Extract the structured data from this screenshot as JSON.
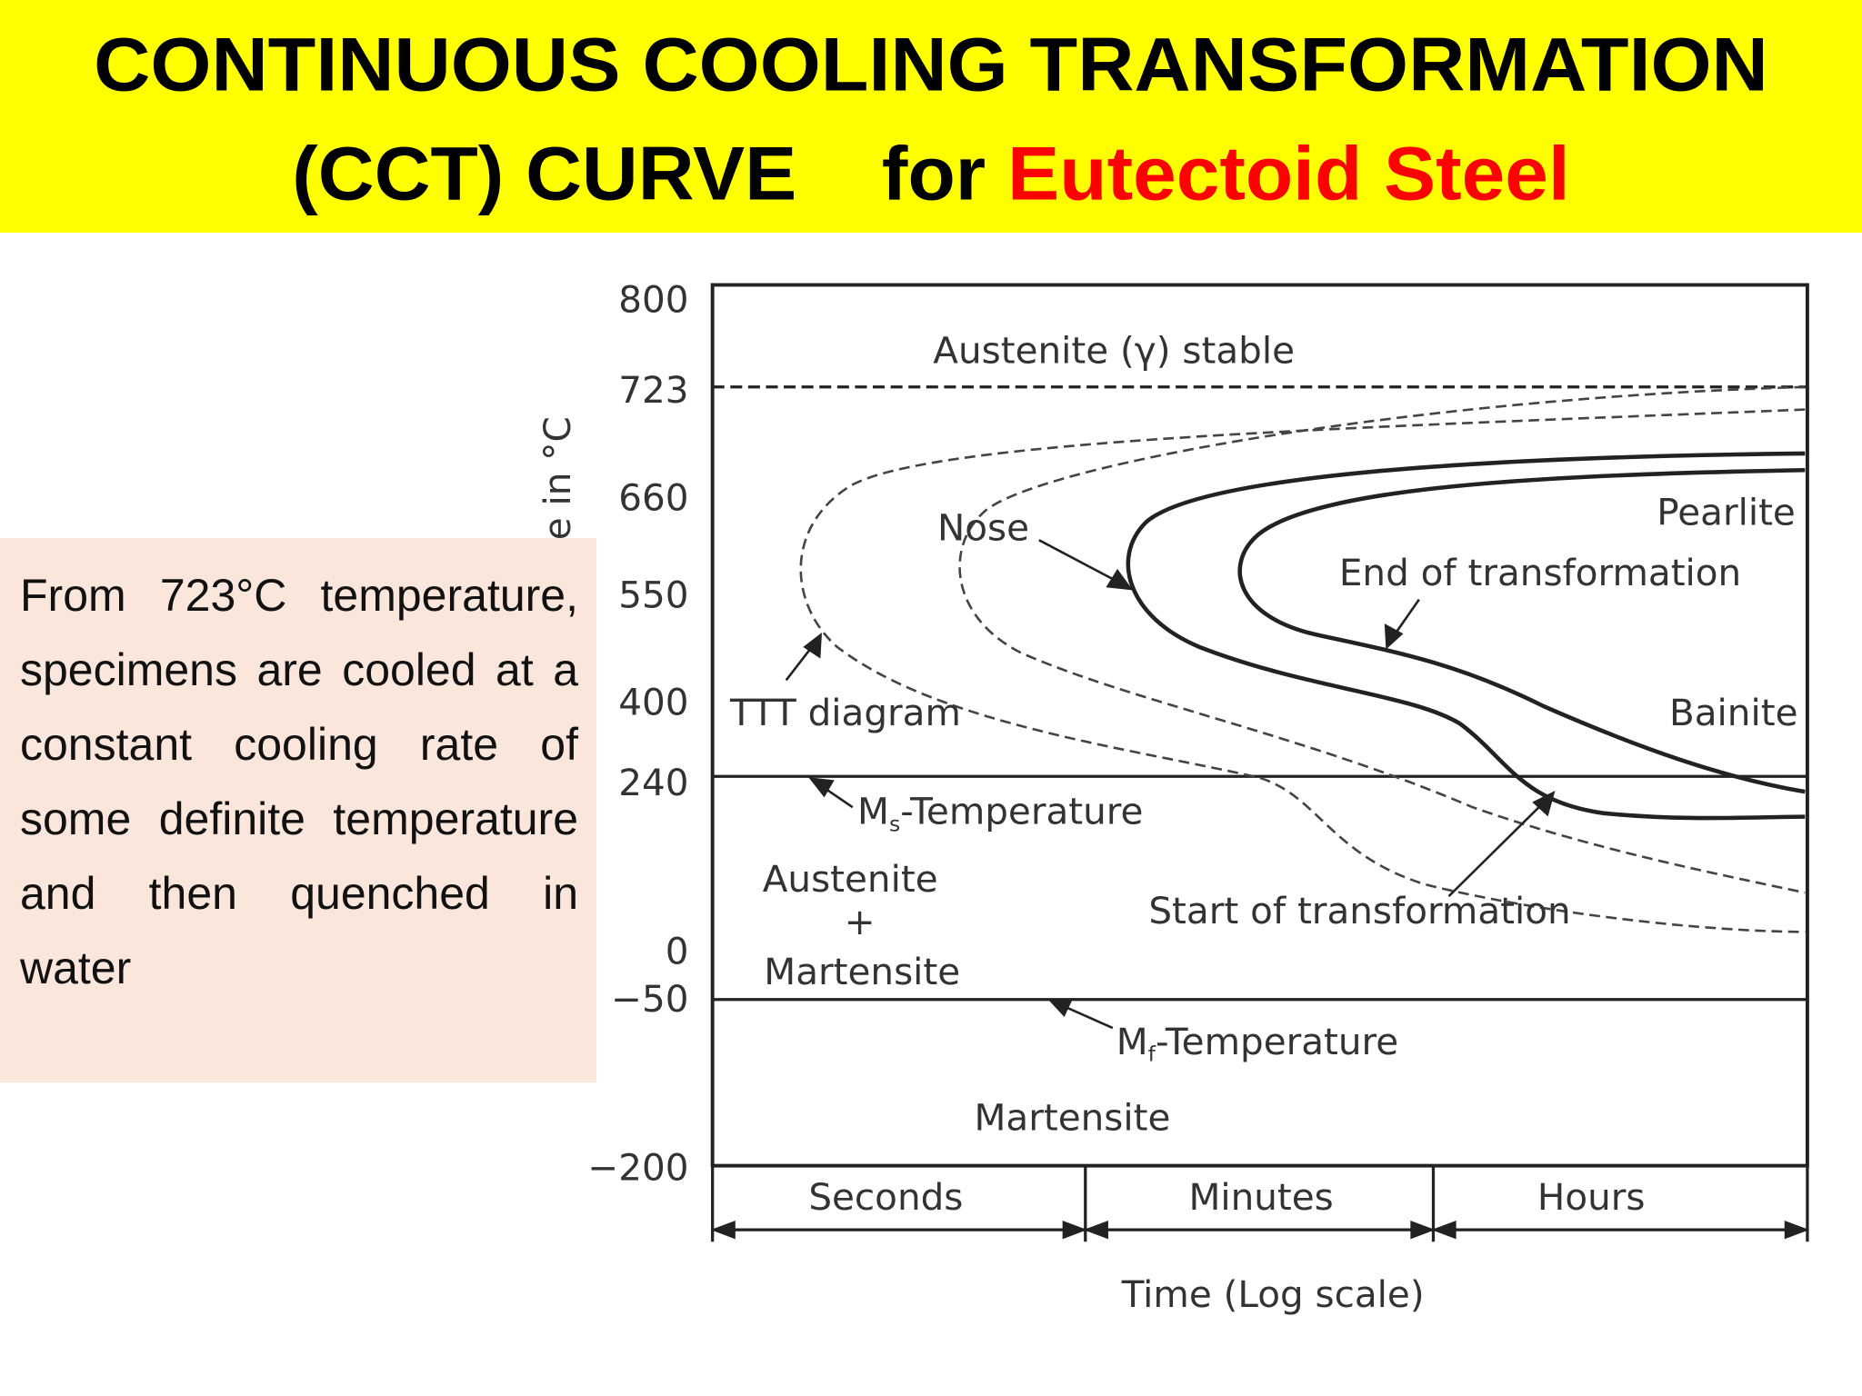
{
  "header": {
    "title_line1": "CONTINUOUS COOLING TRANSFORMATION",
    "title_line2_part1": "(CCT) CURVE",
    "title_line2_part2": "for",
    "title_line2_highlight": "Eutectoid Steel"
  },
  "description": "From 723°C temperature, specimens are cooled at a constant cooling rate of some definite temperature and then quenched in water",
  "diagram": {
    "y_axis_label": "e in °C",
    "y_tick_labels": [
      "800",
      "723",
      "660",
      "550",
      "400",
      "240",
      "0",
      "−50",
      "−200"
    ],
    "labels": {
      "austenite_stable": "Austenite (γ) stable",
      "nose": "Nose",
      "pearlite": "Pearlite",
      "end_of_transformation": "End of transformation",
      "ttt_diagram": "TTT diagram",
      "bainite": "Bainite",
      "start_of_transformation": "Start of transformation",
      "austenite": "Austenite",
      "plus": "+",
      "martensite_mixed": "Martensite",
      "martensite": "Martensite"
    },
    "ms_temperature": {
      "symbol": "M",
      "subscript": "s",
      "text": "-Temperature"
    },
    "mf_temperature": {
      "symbol": "M",
      "subscript": "f",
      "text": "-Temperature"
    },
    "time_ranges": [
      "Seconds",
      "Minutes",
      "Hours"
    ],
    "x_axis_label": "Time (Log scale)"
  }
}
